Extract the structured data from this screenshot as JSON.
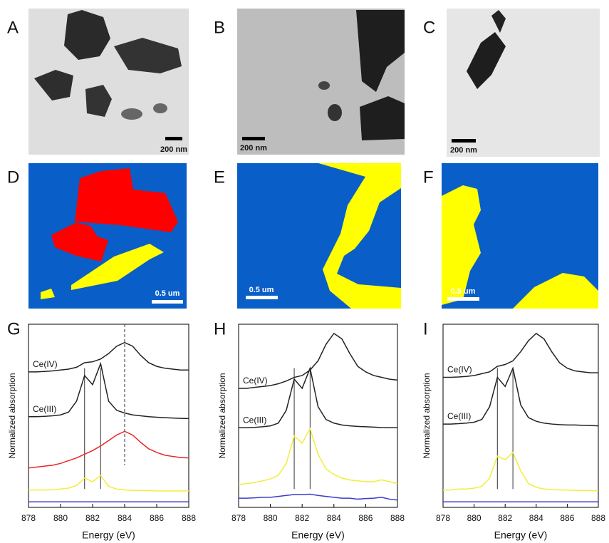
{
  "panel_labels": [
    "A",
    "B",
    "C",
    "D",
    "E",
    "F",
    "G",
    "H",
    "I"
  ],
  "scale_bars": [
    "200 nm",
    "200 nm",
    "200 nm",
    "0.5 um",
    "0.5 um",
    "0.5 um"
  ],
  "chart_data": [
    {
      "type": "line",
      "ylabel": "Normalized absorption",
      "xlabel": "Energy (eV)",
      "xlim": [
        878,
        888
      ],
      "xticks": [
        878,
        880,
        882,
        884,
        886,
        888
      ],
      "ylim": [
        0,
        10
      ],
      "vlines": [
        881.5,
        882.5
      ],
      "dashed_vlines": [
        884
      ],
      "x": [
        878,
        878.5,
        879,
        879.5,
        880,
        880.5,
        881,
        881.5,
        882,
        882.5,
        883,
        883.5,
        884,
        884.5,
        885,
        885.5,
        886,
        886.5,
        887,
        887.5,
        888
      ],
      "series": [
        {
          "name": "Ce(IV)",
          "color": "#222222",
          "values": [
            7.4,
            7.4,
            7.42,
            7.45,
            7.5,
            7.55,
            7.65,
            7.9,
            7.95,
            8.1,
            8.4,
            8.8,
            9.0,
            8.8,
            8.3,
            7.9,
            7.7,
            7.6,
            7.55,
            7.5,
            7.5
          ]
        },
        {
          "name": "Ce(III)",
          "color": "#222222",
          "values": [
            4.95,
            4.95,
            4.97,
            5.0,
            5.05,
            5.2,
            5.8,
            7.2,
            6.7,
            7.85,
            5.8,
            5.3,
            5.15,
            5.05,
            5.0,
            4.95,
            4.92,
            4.9,
            4.88,
            4.86,
            4.85
          ]
        },
        {
          "color": "#e8262a",
          "values": [
            2.15,
            2.2,
            2.25,
            2.3,
            2.4,
            2.55,
            2.7,
            2.9,
            3.1,
            3.35,
            3.65,
            3.95,
            4.15,
            3.95,
            3.55,
            3.2,
            3.0,
            2.85,
            2.78,
            2.72,
            2.7
          ]
        },
        {
          "color": "#f2ee3a",
          "values": [
            0.95,
            0.95,
            0.95,
            0.96,
            1.0,
            1.05,
            1.2,
            1.6,
            1.4,
            1.75,
            1.15,
            1.0,
            0.95,
            0.93,
            0.92,
            0.92,
            0.9,
            0.9,
            0.9,
            0.9,
            0.9
          ]
        },
        {
          "color": "#3a3ad0",
          "values": [
            0.3,
            0.3,
            0.3,
            0.3,
            0.3,
            0.3,
            0.3,
            0.3,
            0.3,
            0.3,
            0.3,
            0.3,
            0.3,
            0.3,
            0.3,
            0.3,
            0.3,
            0.3,
            0.3,
            0.3,
            0.3
          ]
        }
      ]
    },
    {
      "type": "line",
      "ylabel": "Normalized absorption",
      "xlabel": "Energy (eV)",
      "xlim": [
        878,
        888
      ],
      "xticks": [
        878,
        880,
        882,
        884,
        886,
        888
      ],
      "ylim": [
        0,
        10
      ],
      "vlines": [
        881.5,
        882.5
      ],
      "x": [
        878,
        878.5,
        879,
        879.5,
        880,
        880.5,
        881,
        881.5,
        882,
        882.5,
        883,
        883.5,
        884,
        884.5,
        885,
        885.5,
        886,
        886.5,
        887,
        887.5,
        888
      ],
      "series": [
        {
          "name": "Ce(IV)",
          "color": "#222222",
          "values": [
            6.5,
            6.5,
            6.55,
            6.6,
            6.65,
            6.75,
            6.9,
            7.1,
            7.2,
            7.5,
            8.0,
            8.9,
            9.5,
            9.2,
            8.4,
            7.7,
            7.4,
            7.2,
            7.1,
            7.0,
            6.95
          ]
        },
        {
          "name": "Ce(III)",
          "color": "#222222",
          "values": [
            4.35,
            4.35,
            4.37,
            4.4,
            4.45,
            4.6,
            5.3,
            7.0,
            6.5,
            7.6,
            5.5,
            4.8,
            4.6,
            4.5,
            4.45,
            4.42,
            4.4,
            4.38,
            4.36,
            4.35,
            4.35
          ]
        },
        {
          "color": "#f2ee3a",
          "values": [
            1.25,
            1.3,
            1.35,
            1.45,
            1.55,
            1.75,
            2.4,
            3.9,
            3.5,
            4.3,
            2.9,
            2.1,
            1.8,
            1.6,
            1.5,
            1.45,
            1.4,
            1.4,
            1.5,
            1.4,
            1.3
          ]
        },
        {
          "color": "#3a3ad0",
          "values": [
            0.5,
            0.5,
            0.52,
            0.55,
            0.55,
            0.6,
            0.65,
            0.7,
            0.7,
            0.72,
            0.65,
            0.6,
            0.55,
            0.5,
            0.5,
            0.45,
            0.48,
            0.5,
            0.55,
            0.45,
            0.4
          ]
        }
      ]
    },
    {
      "type": "line",
      "ylabel": "Normalized absorption",
      "xlabel": "Energy (eV)",
      "xlim": [
        878,
        888
      ],
      "xticks": [
        878,
        880,
        882,
        884,
        886,
        888
      ],
      "ylim": [
        0,
        10
      ],
      "vlines": [
        881.5,
        882.5
      ],
      "x": [
        878,
        878.5,
        879,
        879.5,
        880,
        880.5,
        881,
        881.5,
        882,
        882.5,
        883,
        883.5,
        884,
        884.5,
        885,
        885.5,
        886,
        886.5,
        887,
        887.5,
        888
      ],
      "series": [
        {
          "name": "Ce(IV)",
          "color": "#222222",
          "values": [
            7.1,
            7.1,
            7.12,
            7.15,
            7.2,
            7.3,
            7.4,
            7.7,
            7.8,
            8.0,
            8.5,
            9.1,
            9.5,
            9.2,
            8.5,
            7.9,
            7.6,
            7.45,
            7.4,
            7.35,
            7.35
          ]
        },
        {
          "name": "Ce(III)",
          "color": "#222222",
          "values": [
            4.55,
            4.55,
            4.57,
            4.6,
            4.65,
            4.8,
            5.5,
            7.1,
            6.6,
            7.6,
            5.6,
            4.9,
            4.7,
            4.6,
            4.55,
            4.52,
            4.5,
            4.5,
            4.48,
            4.47,
            4.45
          ]
        },
        {
          "color": "#f2ee3a",
          "values": [
            0.95,
            0.95,
            1.0,
            1.0,
            1.05,
            1.15,
            1.6,
            2.8,
            2.6,
            3.0,
            2.0,
            1.3,
            1.1,
            1.0,
            0.98,
            0.95,
            0.95,
            0.93,
            0.92,
            0.92,
            0.9
          ]
        },
        {
          "color": "#3a3ad0",
          "values": [
            0.3,
            0.3,
            0.3,
            0.3,
            0.3,
            0.3,
            0.3,
            0.3,
            0.3,
            0.3,
            0.3,
            0.3,
            0.3,
            0.3,
            0.3,
            0.3,
            0.3,
            0.3,
            0.3,
            0.3,
            0.3
          ]
        }
      ]
    }
  ]
}
